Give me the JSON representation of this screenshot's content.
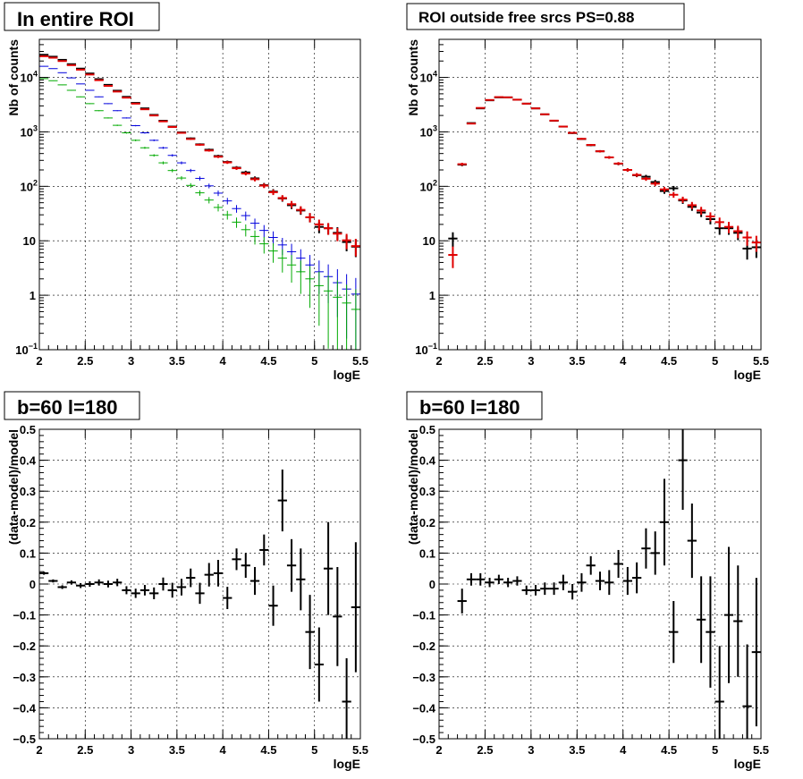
{
  "chart_data": [
    {
      "type": "scatter",
      "title": "In entire ROI",
      "xlabel": "logE",
      "ylabel": "Nb of counts",
      "xlim": [
        2,
        5.5
      ],
      "ylim": [
        0.1,
        50000
      ],
      "log_y": true,
      "grid": true,
      "xticks": [
        "2",
        "2.5",
        "3",
        "3.5",
        "4",
        "4.5",
        "5",
        "5.5"
      ],
      "yticks": [
        {
          "value": 0.1,
          "label": "10",
          "sup": "−1"
        },
        {
          "value": 1,
          "label": "1",
          "sup": ""
        },
        {
          "value": 10,
          "label": "10",
          "sup": ""
        },
        {
          "value": 100,
          "label": "10",
          "sup": "2"
        },
        {
          "value": 1000,
          "label": "10",
          "sup": "3"
        },
        {
          "value": 10000,
          "label": "10",
          "sup": "4"
        }
      ],
      "series": [
        {
          "color": "#000000",
          "x": [
            2.05,
            2.15,
            2.25,
            2.35,
            2.45,
            2.55,
            2.65,
            2.75,
            2.85,
            2.95,
            3.05,
            3.15,
            3.25,
            3.35,
            3.45,
            3.55,
            3.65,
            3.75,
            3.85,
            3.95,
            4.05,
            4.15,
            4.25,
            4.35,
            4.45,
            4.55,
            4.65,
            4.75,
            4.85,
            4.95,
            5.05,
            5.15,
            5.25,
            5.35,
            5.45
          ],
          "y": [
            26000,
            24000,
            21000,
            17500,
            14500,
            11800,
            9300,
            7300,
            5700,
            4400,
            3400,
            2700,
            2050,
            1600,
            1250,
            980,
            760,
            590,
            470,
            360,
            280,
            220,
            180,
            140,
            105,
            80,
            60,
            45,
            36,
            27,
            18,
            17,
            14,
            9.5,
            7.8
          ]
        },
        {
          "color": "#e00000",
          "x": [
            2.05,
            2.15,
            2.25,
            2.35,
            2.45,
            2.55,
            2.65,
            2.75,
            2.85,
            2.95,
            3.05,
            3.15,
            3.25,
            3.35,
            3.45,
            3.55,
            3.65,
            3.75,
            3.85,
            3.95,
            4.05,
            4.15,
            4.25,
            4.35,
            4.45,
            4.55,
            4.65,
            4.75,
            4.85,
            4.95,
            5.05,
            5.15,
            5.25,
            5.35,
            5.45
          ],
          "y": [
            24500,
            23000,
            20000,
            16800,
            13900,
            11300,
            8900,
            7000,
            5500,
            4250,
            3300,
            2600,
            2000,
            1560,
            1230,
            960,
            740,
            580,
            455,
            350,
            275,
            215,
            172,
            135,
            103,
            78,
            61,
            47,
            37,
            27,
            20,
            17,
            13.5,
            10.2,
            8.0
          ]
        },
        {
          "color": "#0000dd",
          "x": [
            2.05,
            2.15,
            2.25,
            2.35,
            2.45,
            2.55,
            2.65,
            2.75,
            2.85,
            2.95,
            3.05,
            3.15,
            3.25,
            3.35,
            3.45,
            3.55,
            3.65,
            3.75,
            3.85,
            3.95,
            4.05,
            4.15,
            4.25,
            4.35,
            4.45,
            4.55,
            4.65,
            4.75,
            4.85,
            4.95,
            5.05,
            5.15,
            5.25,
            5.35,
            5.45
          ],
          "y": [
            16000,
            14500,
            12200,
            9800,
            7600,
            5800,
            4400,
            3300,
            2450,
            1800,
            1300,
            960,
            700,
            510,
            370,
            270,
            195,
            140,
            102,
            75,
            54,
            39,
            29,
            21,
            15.5,
            11.5,
            8.4,
            6.3,
            4.8,
            3.6,
            2.7,
            2.2,
            1.7,
            1.3,
            1.05
          ]
        },
        {
          "color": "#00aa00",
          "x": [
            2.05,
            2.15,
            2.25,
            2.35,
            2.45,
            2.55,
            2.65,
            2.75,
            2.85,
            2.95,
            3.05,
            3.15,
            3.25,
            3.35,
            3.45,
            3.55,
            3.65,
            3.75,
            3.85,
            3.95,
            4.05,
            4.15,
            4.25,
            4.35,
            4.45,
            4.55,
            4.65,
            4.75,
            4.85,
            4.95,
            5.05,
            5.15,
            5.25,
            5.35,
            5.45
          ],
          "y": [
            9500,
            8700,
            7300,
            5800,
            4400,
            3300,
            2450,
            1800,
            1320,
            960,
            700,
            510,
            370,
            270,
            195,
            142,
            104,
            76,
            56,
            41,
            30,
            22,
            16,
            12,
            8.8,
            6.5,
            4.8,
            3.6,
            2.7,
            2.0,
            1.5,
            1.2,
            0.92,
            0.72,
            0.55
          ]
        }
      ]
    },
    {
      "type": "scatter",
      "title": "ROI outside free srcs PS=0.88",
      "xlabel": "logE",
      "ylabel": "Nb of counts",
      "xlim": [
        2,
        5.5
      ],
      "ylim": [
        0.1,
        50000
      ],
      "log_y": true,
      "grid": true,
      "xticks": [
        "2",
        "2.5",
        "3",
        "3.5",
        "4",
        "4.5",
        "5",
        "5.5"
      ],
      "yticks": [
        {
          "value": 0.1,
          "label": "10",
          "sup": "−1"
        },
        {
          "value": 1,
          "label": "1",
          "sup": ""
        },
        {
          "value": 10,
          "label": "10",
          "sup": ""
        },
        {
          "value": 100,
          "label": "10",
          "sup": "2"
        },
        {
          "value": 1000,
          "label": "10",
          "sup": "3"
        },
        {
          "value": 10000,
          "label": "10",
          "sup": "4"
        }
      ],
      "series": [
        {
          "color": "#000000",
          "x": [
            2.15,
            2.25,
            2.35,
            2.45,
            2.55,
            2.65,
            2.75,
            2.85,
            2.95,
            3.05,
            3.15,
            3.25,
            3.35,
            3.45,
            3.55,
            3.65,
            3.75,
            3.85,
            3.95,
            4.05,
            4.15,
            4.25,
            4.35,
            4.45,
            4.55,
            4.65,
            4.75,
            4.85,
            4.95,
            5.05,
            5.15,
            5.25,
            5.35,
            5.45
          ],
          "y": [
            11,
            250,
            1450,
            2700,
            3800,
            4300,
            4300,
            3900,
            3300,
            2700,
            2100,
            1600,
            1250,
            950,
            740,
            570,
            440,
            340,
            260,
            200,
            160,
            150,
            120,
            82,
            92,
            55,
            42,
            33,
            25,
            17,
            17,
            14,
            7.2,
            7.6
          ]
        },
        {
          "color": "#e00000",
          "x": [
            2.15,
            2.25,
            2.35,
            2.45,
            2.55,
            2.65,
            2.75,
            2.85,
            2.95,
            3.05,
            3.15,
            3.25,
            3.35,
            3.45,
            3.55,
            3.65,
            3.75,
            3.85,
            3.95,
            4.05,
            4.15,
            4.25,
            4.35,
            4.45,
            4.55,
            4.65,
            4.75,
            4.85,
            4.95,
            5.05,
            5.15,
            5.25,
            5.35,
            5.45
          ],
          "y": [
            5.5,
            255,
            1420,
            2750,
            3850,
            4350,
            4300,
            3900,
            3300,
            2700,
            2100,
            1610,
            1250,
            960,
            745,
            575,
            440,
            340,
            262,
            200,
            162,
            138,
            112,
            88,
            70,
            57,
            45,
            36,
            28,
            22,
            18,
            15,
            11.5,
            9.3
          ]
        }
      ]
    },
    {
      "type": "scatter",
      "title": "b=60 l=180",
      "xlabel": "logE",
      "ylabel": "(data-model)/model",
      "xlim": [
        2,
        5.5
      ],
      "ylim": [
        -0.5,
        0.5
      ],
      "grid": true,
      "xticks": [
        "2",
        "2.5",
        "3",
        "3.5",
        "4",
        "4.5",
        "5",
        "5.5"
      ],
      "yticks": [
        "−0.5",
        "−0.4",
        "−0.3",
        "−0.2",
        "−0.1",
        "0",
        "0.1",
        "0.2",
        "0.3",
        "0.4",
        "0.5"
      ],
      "series": [
        {
          "color": "#000000",
          "x": [
            2.05,
            2.15,
            2.25,
            2.35,
            2.45,
            2.55,
            2.65,
            2.75,
            2.85,
            2.95,
            3.05,
            3.15,
            3.25,
            3.35,
            3.45,
            3.55,
            3.65,
            3.75,
            3.85,
            3.95,
            4.05,
            4.15,
            4.25,
            4.35,
            4.45,
            4.55,
            4.65,
            4.75,
            4.85,
            4.95,
            5.05,
            5.15,
            5.25,
            5.35,
            5.45
          ],
          "y": [
            0.035,
            0.01,
            -0.01,
            0.005,
            -0.005,
            0.0,
            0.005,
            0.0,
            0.005,
            -0.02,
            -0.03,
            -0.02,
            -0.03,
            0.0,
            -0.02,
            -0.01,
            0.02,
            -0.03,
            0.03,
            0.035,
            -0.045,
            0.08,
            0.06,
            0.01,
            0.11,
            -0.07,
            0.27,
            0.06,
            0.015,
            -0.155,
            -0.26,
            0.05,
            -0.105,
            -0.38,
            -0.075
          ],
          "err": [
            0.005,
            0.005,
            0.006,
            0.007,
            0.008,
            0.009,
            0.01,
            0.011,
            0.012,
            0.013,
            0.015,
            0.017,
            0.019,
            0.021,
            0.024,
            0.027,
            0.03,
            0.034,
            0.038,
            0.043,
            0.036,
            0.035,
            0.04,
            0.045,
            0.05,
            0.065,
            0.1,
            0.085,
            0.1,
            0.12,
            0.12,
            0.15,
            0.16,
            0.14,
            0.21
          ]
        }
      ]
    },
    {
      "type": "scatter",
      "title": "b=60 l=180",
      "xlabel": "logE",
      "ylabel": "(data-model)/model",
      "xlim": [
        2,
        5.5
      ],
      "ylim": [
        -0.5,
        0.5
      ],
      "grid": true,
      "xticks": [
        "2",
        "2.5",
        "3",
        "3.5",
        "4",
        "4.5",
        "5",
        "5.5"
      ],
      "yticks": [
        "−0.5",
        "−0.4",
        "−0.3",
        "−0.2",
        "−0.1",
        "0",
        "0.1",
        "0.2",
        "0.3",
        "0.4",
        "0.5"
      ],
      "series": [
        {
          "color": "#000000",
          "x": [
            2.25,
            2.35,
            2.45,
            2.55,
            2.65,
            2.75,
            2.85,
            2.95,
            3.05,
            3.15,
            3.25,
            3.35,
            3.45,
            3.55,
            3.65,
            3.75,
            3.85,
            3.95,
            4.05,
            4.15,
            4.25,
            4.35,
            4.45,
            4.55,
            4.65,
            4.75,
            4.85,
            4.95,
            5.05,
            5.15,
            5.25,
            5.35,
            5.45
          ],
          "y": [
            -0.055,
            0.015,
            0.015,
            0.005,
            0.015,
            0.005,
            0.01,
            -0.02,
            -0.02,
            -0.015,
            -0.015,
            0.005,
            -0.025,
            0.005,
            0.06,
            0.01,
            0.005,
            0.065,
            0.01,
            0.02,
            0.115,
            0.1,
            0.2,
            -0.155,
            0.4,
            0.14,
            -0.115,
            -0.155,
            -0.38,
            -0.1,
            -0.12,
            -0.395,
            -0.22
          ],
          "err": [
            0.04,
            0.02,
            0.02,
            0.015,
            0.015,
            0.015,
            0.015,
            0.015,
            0.017,
            0.02,
            0.02,
            0.025,
            0.025,
            0.03,
            0.03,
            0.03,
            0.04,
            0.045,
            0.045,
            0.05,
            0.065,
            0.07,
            0.14,
            0.1,
            0.16,
            0.12,
            0.14,
            0.18,
            0.18,
            0.22,
            0.18,
            0.2,
            0.24
          ]
        }
      ]
    }
  ]
}
